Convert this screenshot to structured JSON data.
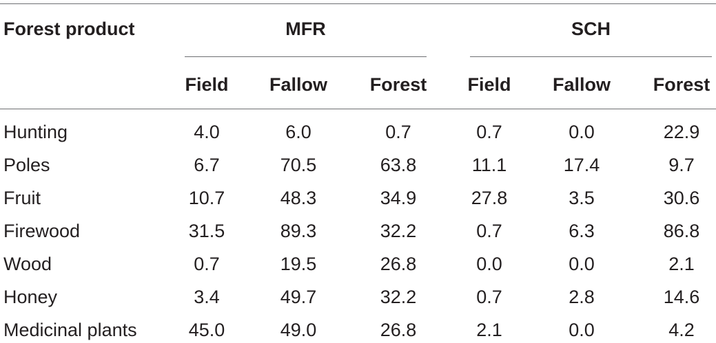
{
  "table": {
    "header": {
      "row_label": "Forest product",
      "groups": [
        {
          "label": "MFR",
          "columns": [
            "Field",
            "Fallow",
            "Forest"
          ]
        },
        {
          "label": "SCH",
          "columns": [
            "Field",
            "Fallow",
            "Forest"
          ]
        }
      ]
    },
    "rows": [
      {
        "label": "Hunting",
        "values": [
          "4.0",
          "6.0",
          "0.7",
          "0.7",
          "0.0",
          "22.9"
        ]
      },
      {
        "label": "Poles",
        "values": [
          "6.7",
          "70.5",
          "63.8",
          "11.1",
          "17.4",
          "9.7"
        ]
      },
      {
        "label": "Fruit",
        "values": [
          "10.7",
          "48.3",
          "34.9",
          "27.8",
          "3.5",
          "30.6"
        ]
      },
      {
        "label": "Firewood",
        "values": [
          "31.5",
          "89.3",
          "32.2",
          "0.7",
          "6.3",
          "86.8"
        ]
      },
      {
        "label": "Wood",
        "values": [
          "0.7",
          "19.5",
          "26.8",
          "0.0",
          "0.0",
          "2.1"
        ]
      },
      {
        "label": "Honey",
        "values": [
          "3.4",
          "49.7",
          "32.2",
          "0.7",
          "2.8",
          "14.6"
        ]
      },
      {
        "label": "Medicinal plants",
        "values": [
          "45.0",
          "49.0",
          "26.8",
          "2.1",
          "0.0",
          "4.2"
        ]
      }
    ]
  }
}
